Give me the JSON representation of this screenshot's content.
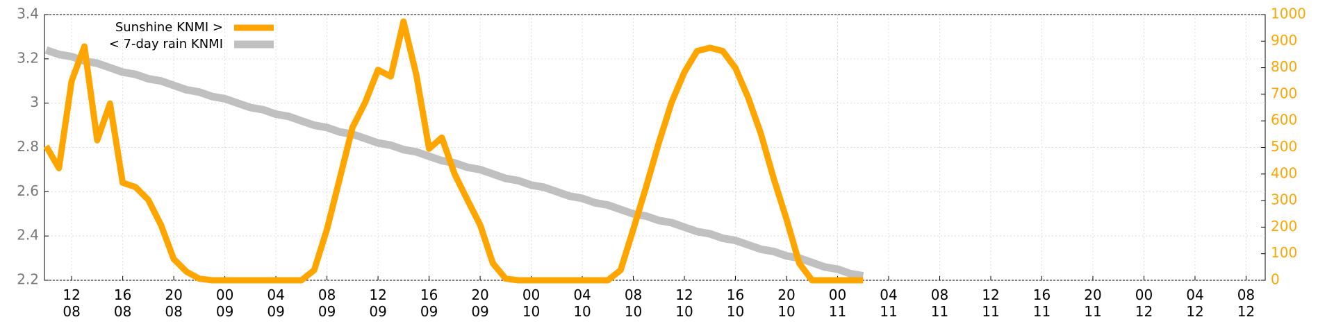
{
  "chart_data": {
    "type": "line",
    "legend": "top-left",
    "grid": true,
    "x": [
      10,
      11,
      12,
      13,
      14,
      15,
      16,
      17,
      18,
      19,
      20,
      21,
      22,
      23,
      24,
      25,
      26,
      27,
      28,
      29,
      30,
      31,
      32,
      33,
      34,
      35,
      36,
      37,
      38,
      39,
      40,
      41,
      42,
      43,
      44,
      45,
      46,
      47,
      48,
      49,
      50,
      51,
      52,
      53,
      54,
      55,
      56,
      57,
      58,
      59,
      60,
      61,
      62,
      63,
      64,
      65,
      66,
      67,
      68,
      69,
      70,
      71,
      72,
      73,
      74
    ],
    "series": [
      {
        "name": "Sunshine KNMI >",
        "color": "#ffa500",
        "axis": "y2",
        "values": [
          505,
          422,
          750,
          880,
          527,
          665,
          367,
          351,
          303,
          208,
          80,
          32,
          6,
          0,
          0,
          0,
          0,
          0,
          0,
          0,
          0,
          38,
          192,
          383,
          575,
          670,
          792,
          767,
          974,
          773,
          495,
          537,
          400,
          303,
          208,
          64,
          6,
          0,
          0,
          0,
          0,
          0,
          0,
          0,
          0,
          38,
          192,
          351,
          518,
          670,
          783,
          863,
          875,
          863,
          799,
          687,
          550,
          383,
          230,
          64,
          0,
          0,
          0,
          0,
          0
        ]
      },
      {
        "name": "< 7-day rain KNMI",
        "color": "#c0c0c0",
        "values": [
          3.24,
          3.22,
          3.21,
          3.19,
          3.18,
          3.16,
          3.14,
          3.13,
          3.11,
          3.1,
          3.08,
          3.06,
          3.05,
          3.03,
          3.02,
          3.0,
          2.98,
          2.97,
          2.95,
          2.94,
          2.92,
          2.9,
          2.89,
          2.87,
          2.86,
          2.84,
          2.82,
          2.81,
          2.79,
          2.78,
          2.76,
          2.74,
          2.73,
          2.71,
          2.7,
          2.68,
          2.66,
          2.65,
          2.63,
          2.62,
          2.6,
          2.58,
          2.57,
          2.55,
          2.54,
          2.52,
          2.5,
          2.49,
          2.47,
          2.46,
          2.44,
          2.42,
          2.41,
          2.39,
          2.38,
          2.36,
          2.34,
          2.33,
          2.31,
          2.3,
          2.28,
          2.26,
          2.25,
          2.23,
          2.22
        ]
      }
    ],
    "xlim": [
      9.87,
      105.5
    ],
    "xticks": [
      {
        "value": 12,
        "label": "12\n08"
      },
      {
        "value": 16,
        "label": "16\n08"
      },
      {
        "value": 20,
        "label": "20\n08"
      },
      {
        "value": 24,
        "label": "00\n09"
      },
      {
        "value": 28,
        "label": "04\n09"
      },
      {
        "value": 32,
        "label": "08\n09"
      },
      {
        "value": 36,
        "label": "12\n09"
      },
      {
        "value": 40,
        "label": "16\n09"
      },
      {
        "value": 44,
        "label": "20\n09"
      },
      {
        "value": 48,
        "label": "00\n10"
      },
      {
        "value": 52,
        "label": "04\n10"
      },
      {
        "value": 56,
        "label": "08\n10"
      },
      {
        "value": 60,
        "label": "12\n10"
      },
      {
        "value": 64,
        "label": "16\n10"
      },
      {
        "value": 68,
        "label": "20\n10"
      },
      {
        "value": 72,
        "label": "00\n11"
      },
      {
        "value": 76,
        "label": "04\n11"
      },
      {
        "value": 80,
        "label": "08\n11"
      },
      {
        "value": 84,
        "label": "12\n11"
      },
      {
        "value": 88,
        "label": "16\n11"
      },
      {
        "value": 92,
        "label": "20\n11"
      },
      {
        "value": 96,
        "label": "00\n12"
      },
      {
        "value": 100,
        "label": "04\n12"
      },
      {
        "value": 104,
        "label": "08\n12"
      }
    ],
    "ylim": [
      2.2,
      3.4
    ],
    "yticks": [
      2.2,
      2.4,
      2.6,
      2.8,
      3,
      3.2,
      3.4
    ],
    "y2lim": [
      0,
      1000
    ],
    "y2ticks": [
      0,
      100,
      200,
      300,
      400,
      500,
      600,
      700,
      800,
      900,
      1000
    ]
  }
}
